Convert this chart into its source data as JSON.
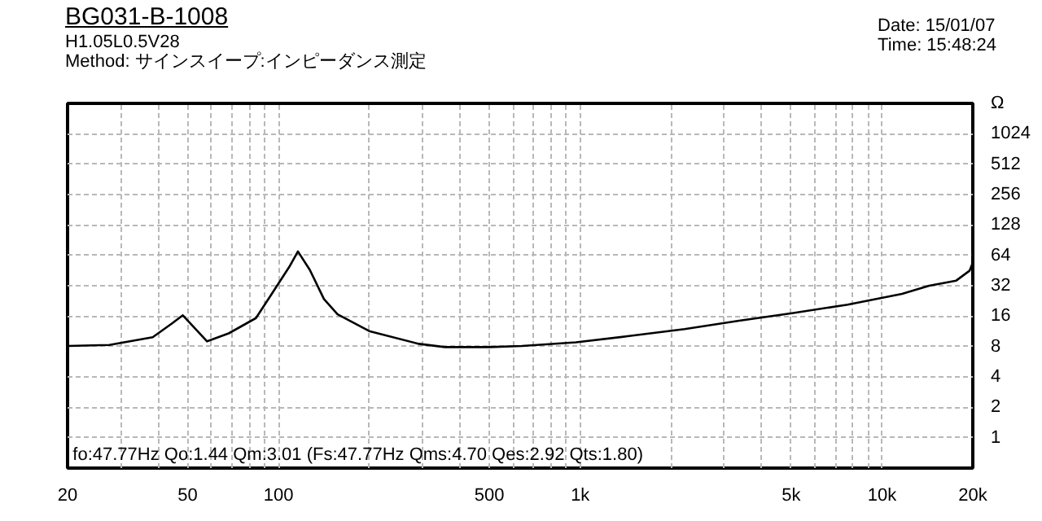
{
  "chart_data": {
    "type": "line",
    "title": "BG031-B-1008",
    "subtitle": [
      "H1.05L0.5V28",
      "Method:  サインスイープ:インピーダンス測定"
    ],
    "annotations": [
      "Date: 15/01/07",
      "Time: 15:48:24",
      "fo:47.77Hz  Qo:1.44 Qm:3.01  (Fs:47.77Hz  Qms:4.70 Qes:2.92 Qts:1.80)"
    ],
    "log": "xy",
    "grid": true,
    "marker": "none",
    "line_style": "solid",
    "xlim": [
      20,
      20000
    ],
    "ylim": [
      0.5,
      2048
    ],
    "xticks": [
      20,
      {
        "value": 30,
        "label": null
      },
      {
        "value": 40,
        "label": null
      },
      50,
      {
        "value": 60,
        "label": null
      },
      {
        "value": 70,
        "label": null
      },
      {
        "value": 80,
        "label": null
      },
      {
        "value": 90,
        "label": null
      },
      100,
      {
        "value": 200,
        "label": null
      },
      {
        "value": 300,
        "label": null
      },
      {
        "value": 400,
        "label": null
      },
      500,
      {
        "value": 600,
        "label": null
      },
      {
        "value": 700,
        "label": null
      },
      {
        "value": 800,
        "label": null
      },
      {
        "value": 900,
        "label": null
      },
      {
        "value": 1000,
        "label": "1k"
      },
      {
        "value": 2000,
        "label": null
      },
      {
        "value": 3000,
        "label": null
      },
      {
        "value": 4000,
        "label": null
      },
      {
        "value": 5000,
        "label": "5k"
      },
      {
        "value": 6000,
        "label": null
      },
      {
        "value": 7000,
        "label": null
      },
      {
        "value": 8000,
        "label": null
      },
      {
        "value": 9000,
        "label": null
      },
      {
        "value": 10000,
        "label": "10k"
      },
      {
        "value": 20000,
        "label": "20k"
      }
    ],
    "yticks": [
      1,
      2,
      4,
      8,
      16,
      32,
      64,
      128,
      256,
      512,
      1024,
      {
        "value": 2048,
        "label": "Ω"
      }
    ],
    "series": [
      {
        "color": "#000000",
        "x": [
          20,
          27.5,
          38.3,
          44.3,
          48.2,
          58,
          68.4,
          84.2,
          95,
          108.5,
          116,
          127,
          141.5,
          157,
          201,
          292,
          356,
          500,
          641,
          968,
          1470,
          2218,
          3358,
          5084,
          7693,
          11650,
          14330,
          17630,
          19500,
          19900,
          20000
        ],
        "values": [
          8.1,
          8.3,
          9.9,
          13.5,
          16.3,
          9.0,
          10.8,
          15.3,
          26.6,
          49,
          70,
          46,
          23.6,
          16.7,
          11.3,
          8.5,
          7.9,
          7.9,
          8.1,
          8.8,
          10.2,
          11.9,
          14.4,
          17.2,
          20.8,
          26.6,
          32,
          36,
          45,
          52,
          96
        ]
      }
    ]
  }
}
